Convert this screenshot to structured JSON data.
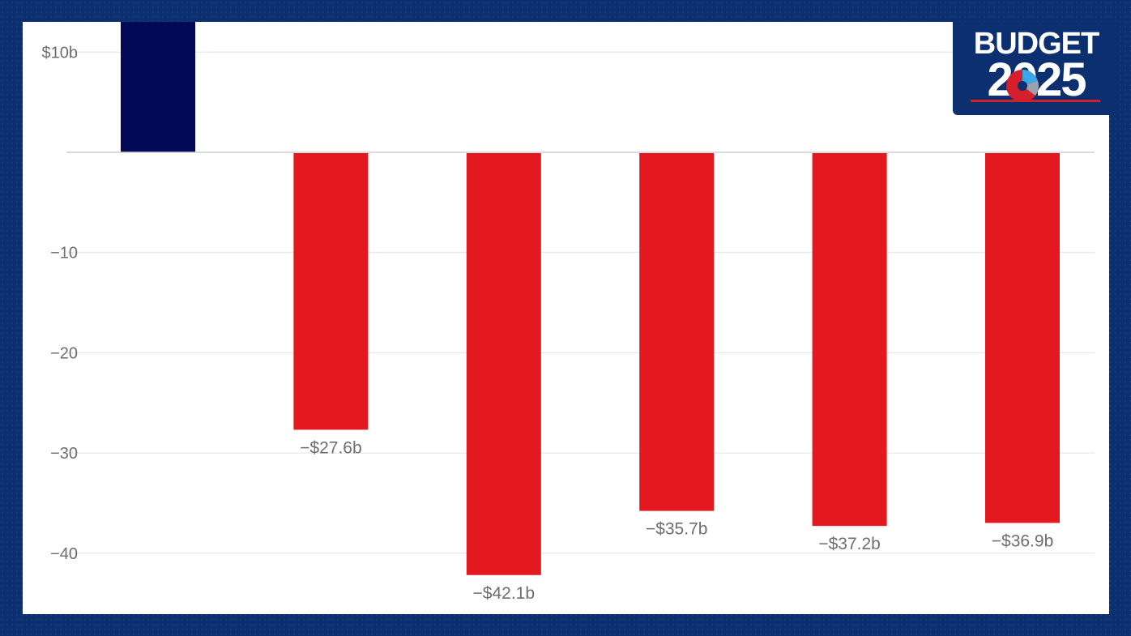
{
  "logo": {
    "line1": "BUDGET",
    "line2": "2025"
  },
  "chart_data": {
    "type": "bar",
    "categories": [
      "",
      "",
      "",
      "",
      "",
      ""
    ],
    "values": [
      14,
      -27.6,
      -42.1,
      -35.7,
      -37.2,
      -36.9
    ],
    "data_labels": [
      "",
      "−$27.6b",
      "−$42.1b",
      "−$35.7b",
      "−$37.2b",
      "−$36.9b"
    ],
    "yticks": [
      10,
      -10,
      -20,
      -30,
      -40
    ],
    "ytick_labels": [
      "$10b",
      "−10",
      "−20",
      "−30",
      "−40"
    ],
    "ylim": [
      -44.5,
      13
    ],
    "grid": true,
    "colors": {
      "positive": "#020a57",
      "negative": "#e3191f",
      "grid": "#e2e2e2",
      "zero": "#cfcfcf"
    }
  }
}
